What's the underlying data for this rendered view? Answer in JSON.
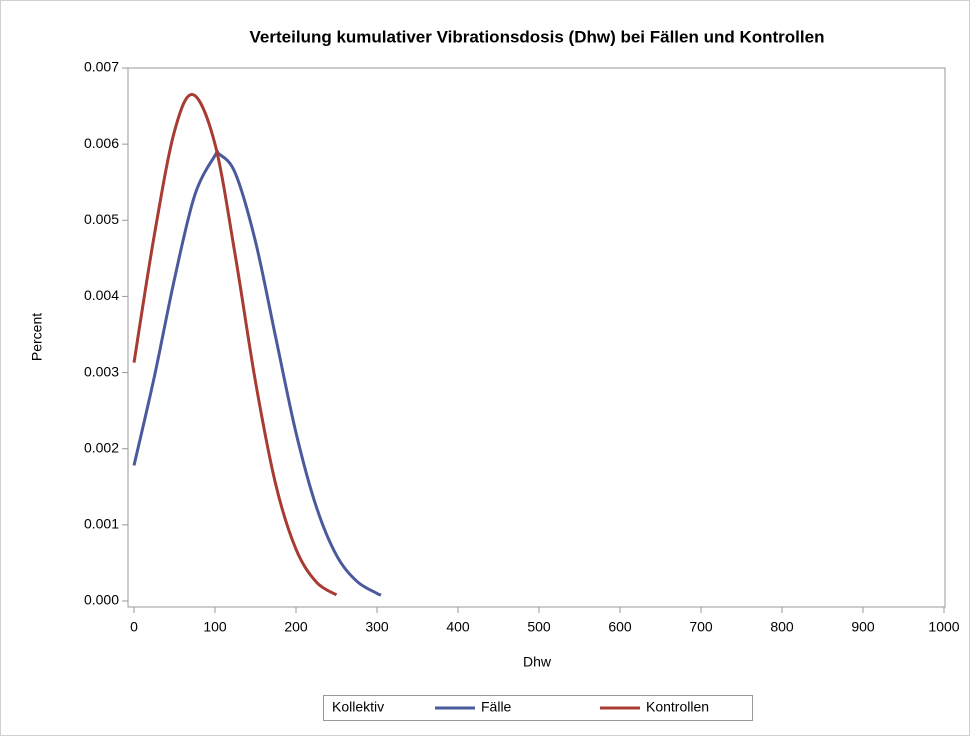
{
  "chart_data": {
    "type": "line",
    "title": "Verteilung kumulativer Vibrationsdosis (Dhw) bei Fällen und Kontrollen",
    "x_label": "Dhw",
    "y_label": "Percent",
    "legend_title": "Kollektiv",
    "legend": "bottom",
    "series": [
      {
        "name": "Fälle",
        "color": "#4a5a9c",
        "x": [
          0,
          25,
          50,
          75,
          100,
          105,
          125,
          150,
          175,
          200,
          225,
          250,
          275,
          300,
          305
        ],
        "values": [
          0.00178,
          0.00294,
          0.00423,
          0.00533,
          0.00585,
          0.00587,
          0.00562,
          0.00472,
          0.00346,
          0.00221,
          0.00124,
          0.0006,
          0.00026,
          0.0001,
          8e-05
        ]
      },
      {
        "name": "Kontrollen",
        "color": "#a83b32",
        "x": [
          0,
          25,
          50,
          73,
          100,
          125,
          150,
          175,
          200,
          225,
          250
        ],
        "values": [
          0.00313,
          0.0048,
          0.00617,
          0.00665,
          0.006,
          0.00454,
          0.00288,
          0.00153,
          0.00068,
          0.00025,
          8e-05
        ]
      }
    ],
    "xlim": [
      0,
      1000
    ],
    "xticks": [
      0,
      100,
      200,
      300,
      400,
      500,
      600,
      700,
      800,
      900,
      1000
    ],
    "ylim": [
      0,
      0.007
    ],
    "yticks": [
      {
        "value": 0,
        "label": "0.000"
      },
      {
        "value": 0.001,
        "label": "0.001"
      },
      {
        "value": 0.002,
        "label": "0.002"
      },
      {
        "value": 0.003,
        "label": "0.003"
      },
      {
        "value": 0.004,
        "label": "0.004"
      },
      {
        "value": 0.005,
        "label": "0.005"
      },
      {
        "value": 0.006,
        "label": "0.006"
      },
      {
        "value": 0.007,
        "label": "0.007"
      }
    ]
  }
}
